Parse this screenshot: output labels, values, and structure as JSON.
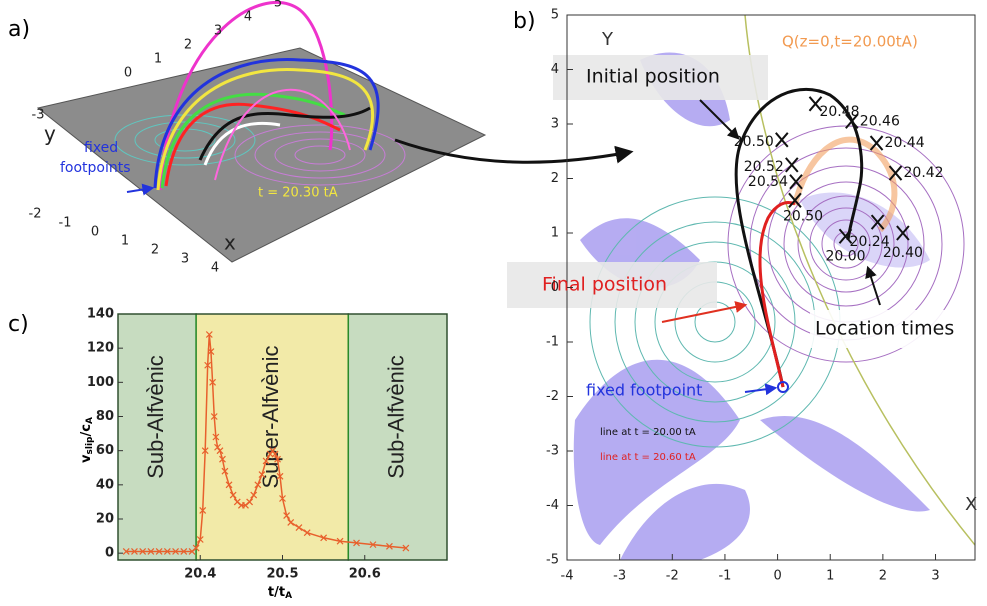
{
  "illustration": {
    "panel_label": "a)",
    "annotation_lines": [
      "fixed",
      "footpoints"
    ],
    "time_label": "t = 20.30 tA",
    "axis_y": "y",
    "axis_x": "x",
    "back_ticks": [
      -3,
      0,
      1,
      2,
      3,
      4,
      5
    ],
    "front_ticks": [
      -2,
      -1,
      0,
      1,
      2,
      3,
      4
    ]
  },
  "chart_data": [
    {
      "type": "line",
      "panel_label": "c)",
      "x_label": [
        "t/t",
        "A"
      ],
      "y_label": [
        "v",
        "slip",
        "/c",
        "A"
      ],
      "xlim": [
        20.3,
        20.7
      ],
      "ylim": [
        -4,
        140
      ],
      "xticks": [
        20.4,
        20.5,
        20.6
      ],
      "yticks": [
        0,
        20,
        40,
        60,
        80,
        100,
        120,
        140
      ],
      "regions": [
        {
          "label": "Sub-Alfvènic",
          "from": 20.3,
          "to": 20.395,
          "color": "#c7dcc0"
        },
        {
          "label": "Super-Alfvènic",
          "from": 20.395,
          "to": 20.58,
          "color": "#f2eaa8"
        },
        {
          "label": "Sub-Alfvènic",
          "from": 20.58,
          "to": 20.7,
          "color": "#c7dcc0"
        }
      ],
      "x": [
        20.31,
        20.32,
        20.33,
        20.34,
        20.35,
        20.36,
        20.37,
        20.38,
        20.39,
        20.395,
        20.4,
        20.403,
        20.406,
        20.409,
        20.411,
        20.413,
        20.415,
        20.417,
        20.419,
        20.421,
        20.424,
        20.427,
        20.43,
        20.435,
        20.44,
        20.445,
        20.45,
        20.455,
        20.46,
        20.465,
        20.47,
        20.475,
        20.48,
        20.485,
        20.488,
        20.491,
        20.494,
        20.497,
        20.5,
        20.505,
        20.51,
        20.52,
        20.53,
        20.55,
        20.57,
        20.59,
        20.61,
        20.63,
        20.65
      ],
      "series": [
        {
          "color": "#e8602c",
          "values": [
            1,
            1,
            1,
            1,
            1,
            1,
            1,
            1,
            1,
            3,
            8,
            25,
            60,
            110,
            128,
            118,
            100,
            80,
            68,
            62,
            60,
            55,
            48,
            40,
            34,
            30,
            28,
            28,
            30,
            34,
            40,
            46,
            54,
            58,
            60,
            58,
            55,
            45,
            32,
            22,
            18,
            15,
            12,
            9,
            7,
            6,
            5,
            4,
            3
          ]
        }
      ]
    },
    {
      "type": "scatter",
      "panel_label": "b)",
      "x_label": "X",
      "y_label": "Y",
      "xlim": [
        -4,
        3.75
      ],
      "ylim": [
        -5,
        5
      ],
      "xticks": [
        -4,
        -3,
        -2,
        -1,
        0,
        1,
        2,
        3
      ],
      "yticks": [
        -5,
        -4,
        -3,
        -2,
        -1,
        0,
        1,
        2,
        3,
        4,
        5
      ],
      "q_label": "Q(z=0,t=20.00tA)",
      "initial": "Initial position",
      "final": "Final position",
      "location": "Location times",
      "footpoint": "fixed footpoint",
      "legend": [
        "line at t = 20.00 tA",
        "line at t = 20.60 tA"
      ],
      "color": "#111111",
      "labels": [
        "20.00",
        "20.24",
        "20.40",
        "20.42",
        "20.44",
        "20.46",
        "20.48",
        "20.50",
        "20.52",
        "20.54",
        "20.50"
      ],
      "x": [
        1.29,
        1.9,
        2.38,
        2.24,
        1.88,
        1.41,
        0.72,
        0.08,
        0.27,
        0.35,
        0.33
      ],
      "values": [
        0.94,
        1.2,
        1.0,
        2.1,
        2.65,
        3.05,
        3.37,
        2.71,
        2.25,
        1.94,
        1.6
      ]
    }
  ]
}
